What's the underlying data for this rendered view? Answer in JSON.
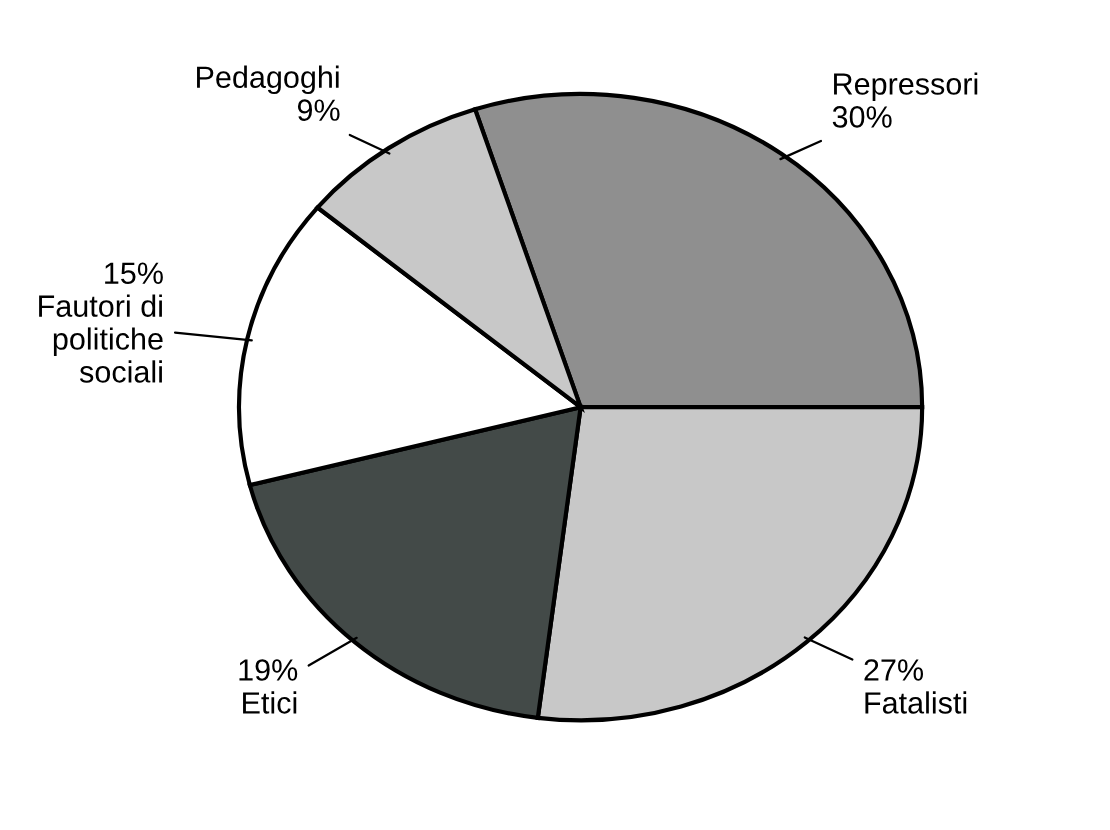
{
  "chart_data": {
    "type": "pie",
    "categories": [
      "Repressori",
      "Fatalisti",
      "Etici",
      "Fautori di\npolitiche\nsociali",
      "Pedagoghi"
    ],
    "values": [
      30,
      27,
      19,
      15,
      9
    ],
    "value_labels": [
      "30%",
      "27%",
      "19%",
      "15%",
      "9%"
    ],
    "colors": [
      "#8f8f8f",
      "#c8c8c8",
      "#434a48",
      "#ffffff",
      "#c8c8c8"
    ],
    "legend": false
  }
}
